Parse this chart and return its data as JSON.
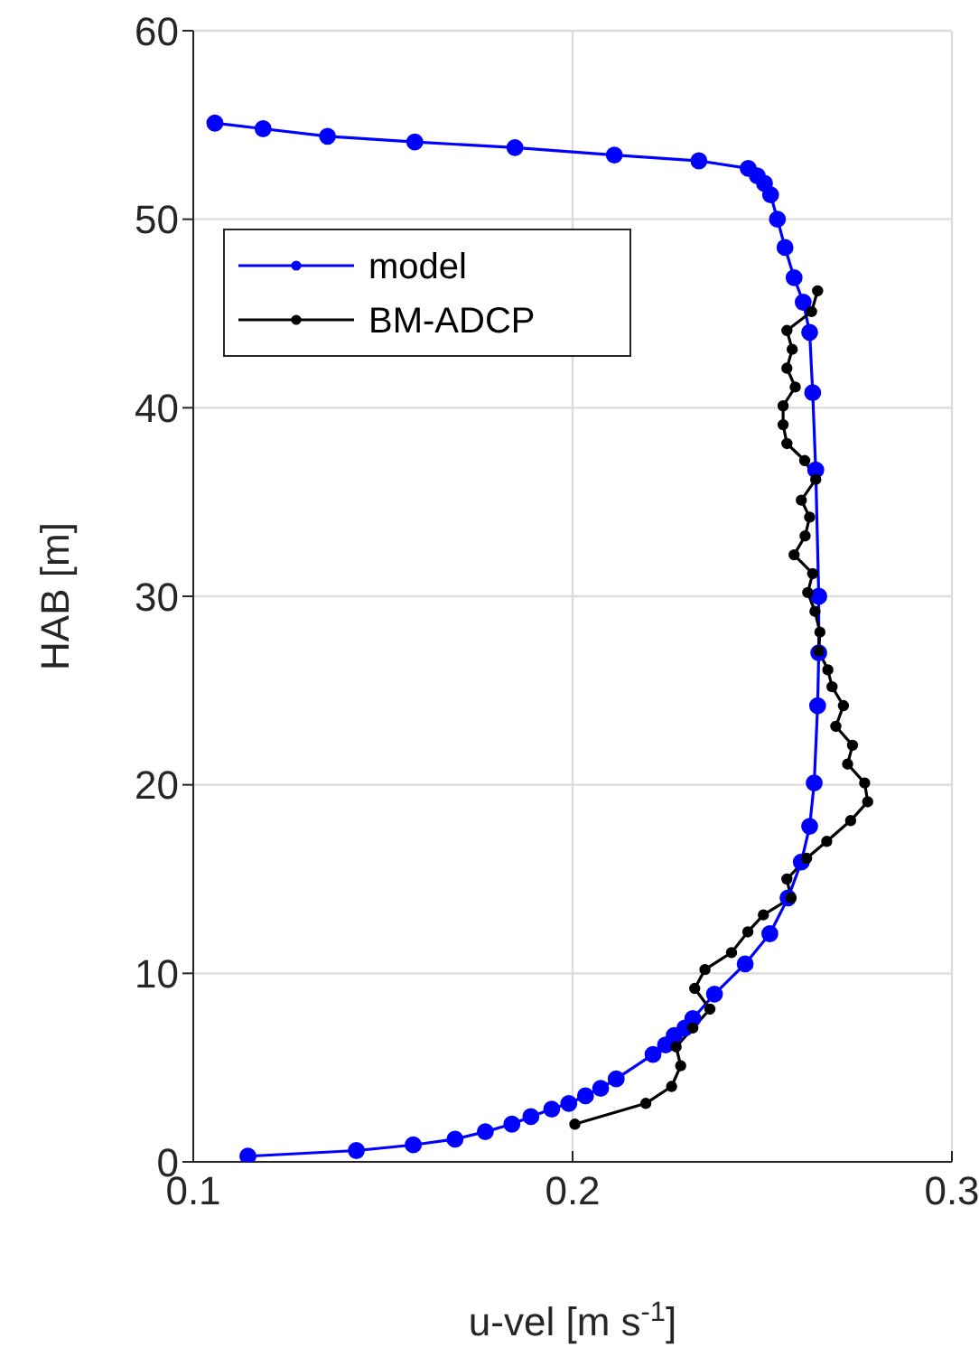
{
  "chart_data": {
    "type": "line",
    "xlabel": "u-vel [m s$^{-1}$]",
    "ylabel": "HAB [m]",
    "xlim": [
      0.1,
      0.3
    ],
    "xticks": [
      0.1,
      0.2,
      0.3
    ],
    "ylim": [
      0,
      60
    ],
    "yticks": [
      0,
      10,
      20,
      30,
      40,
      50,
      60
    ],
    "grid": true,
    "legend": "top left",
    "marker": "circle",
    "line_style": "solid",
    "series": [
      {
        "name": "model",
        "color": "#0000ff",
        "x": [
          0.1144,
          0.143,
          0.158,
          0.169,
          0.177,
          0.184,
          0.189,
          0.1945,
          0.199,
          0.2034,
          0.2074,
          0.2115,
          0.2212,
          0.2245,
          0.2268,
          0.2296,
          0.2317,
          0.2374,
          0.2455,
          0.252,
          0.2568,
          0.2603,
          0.2625,
          0.2637,
          0.2646,
          0.2649,
          0.2649,
          0.2641,
          0.2633,
          0.2625,
          0.2608,
          0.2584,
          0.256,
          0.254,
          0.2522,
          0.2506,
          0.2487,
          0.2463,
          0.2333,
          0.211,
          0.1848,
          0.1584,
          0.1354,
          0.1184,
          0.1057
        ],
        "values": [
          0.3,
          0.6,
          0.9,
          1.2,
          1.6,
          2.0,
          2.4,
          2.8,
          3.1,
          3.5,
          3.9,
          4.4,
          5.7,
          6.2,
          6.7,
          7.1,
          7.6,
          8.9,
          10.5,
          12.1,
          14.0,
          15.9,
          17.8,
          20.1,
          24.2,
          27,
          30.0,
          36.7,
          40.8,
          44.0,
          45.6,
          46.9,
          48.5,
          50,
          51.3,
          51.9,
          52.3,
          52.7,
          53.1,
          53.4,
          53.8,
          54.1,
          54.4,
          54.8,
          55.1
        ]
      },
      {
        "name": "BM-ADCP",
        "color": "#000000",
        "x": [
          0.2006,
          0.2193,
          0.2261,
          0.2285,
          0.2273,
          0.2317,
          0.2362,
          0.2322,
          0.2349,
          0.2419,
          0.2462,
          0.2503,
          0.2576,
          0.2565,
          0.2617,
          0.267,
          0.2733,
          0.2778,
          0.277,
          0.2725,
          0.2738,
          0.2694,
          0.2714,
          0.2684,
          0.2673,
          0.2649,
          0.2652,
          0.2639,
          0.262,
          0.2633,
          0.2584,
          0.2613,
          0.2625,
          0.2603,
          0.2641,
          0.2612,
          0.2565,
          0.2555,
          0.2555,
          0.2587,
          0.2565,
          0.2579,
          0.2565,
          0.263,
          0.2646
        ],
        "values": [
          2.0,
          3.1,
          4.0,
          5.1,
          6.1,
          7.1,
          8.1,
          9.2,
          10.2,
          11.1,
          12.2,
          13.1,
          14.0,
          15.0,
          16.1,
          17.0,
          18.1,
          19.1,
          20.1,
          21.1,
          22.1,
          23.1,
          24.2,
          25.2,
          26.1,
          27.1,
          28.1,
          29.2,
          30.2,
          31.2,
          32.2,
          33.2,
          34.2,
          35.1,
          36.2,
          37.2,
          38.1,
          39.1,
          40.1,
          41.1,
          42.1,
          43.1,
          44.1,
          45.1,
          46.2
        ]
      }
    ]
  }
}
